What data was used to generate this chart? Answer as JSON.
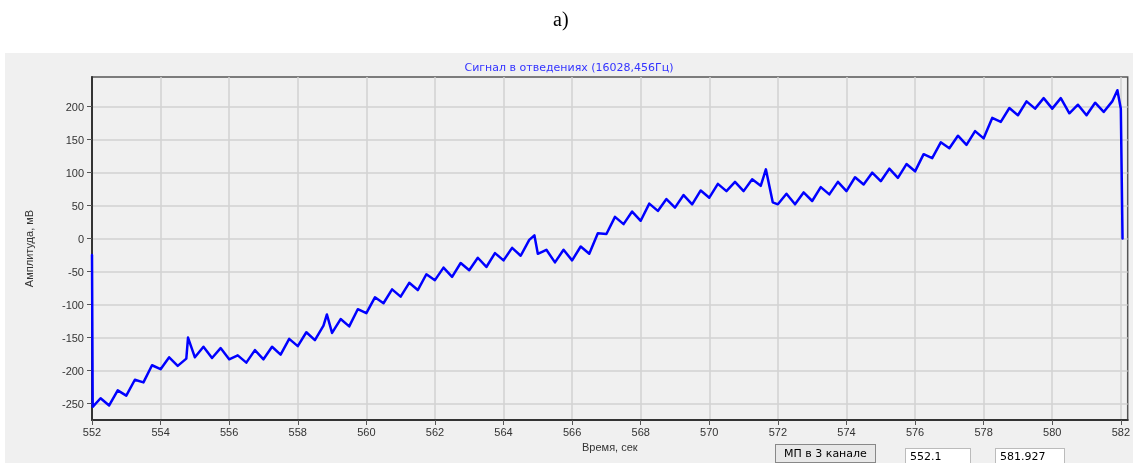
{
  "chart_data": {
    "type": "line",
    "title": "Сигнал в отведениях (16028,456Гц)",
    "xlabel": "Время, сек",
    "ylabel": "Амплитуда, мВ",
    "annotations": [
      "a)",
      "МП в 3 канале",
      "552.1",
      "581.927"
    ],
    "xlim": [
      552,
      582.2
    ],
    "xticks": [
      552,
      554,
      556,
      558,
      560,
      562,
      564,
      566,
      568,
      570,
      572,
      574,
      576,
      578,
      580,
      582
    ],
    "ylim": [
      -275,
      245
    ],
    "yticks": [
      -250,
      -200,
      -150,
      -100,
      -50,
      0,
      50,
      100,
      150,
      200
    ],
    "grid": true,
    "marker": "none",
    "line_style": "solid",
    "series": [
      {
        "color": "#0000ff",
        "x": [
          552,
          552.02,
          552.25,
          552.5,
          552.75,
          553,
          553.25,
          553.5,
          553.75,
          554,
          554.25,
          554.5,
          554.75,
          554.8,
          555,
          555.25,
          555.5,
          555.75,
          556,
          556.25,
          556.5,
          556.75,
          557,
          557.25,
          557.5,
          557.75,
          558,
          558.25,
          558.5,
          558.75,
          558.85,
          559,
          559.25,
          559.5,
          559.75,
          560,
          560.25,
          560.5,
          560.75,
          561,
          561.25,
          561.5,
          561.75,
          562,
          562.25,
          562.5,
          562.75,
          563,
          563.25,
          563.5,
          563.75,
          564,
          564.25,
          564.5,
          564.75,
          564.9,
          565,
          565.25,
          565.5,
          565.75,
          566,
          566.25,
          566.5,
          566.75,
          567,
          567.25,
          567.5,
          567.75,
          568,
          568.25,
          568.5,
          568.75,
          569,
          569.25,
          569.5,
          569.75,
          570,
          570.25,
          570.5,
          570.75,
          571,
          571.25,
          571.5,
          571.65,
          571.75,
          571.85,
          572,
          572.25,
          572.5,
          572.75,
          573,
          573.25,
          573.5,
          573.75,
          574,
          574.25,
          574.5,
          574.75,
          575,
          575.25,
          575.5,
          575.75,
          576,
          576.25,
          576.5,
          576.75,
          577,
          577.25,
          577.5,
          577.75,
          578,
          578.25,
          578.5,
          578.75,
          579,
          579.25,
          579.5,
          579.75,
          580,
          580.25,
          580.5,
          580.75,
          581,
          581.25,
          581.5,
          581.75,
          581.9,
          582,
          582.05
        ],
        "values": [
          -25,
          -255,
          -242,
          -253,
          -230,
          -238,
          -214,
          -218,
          -192,
          -198,
          -180,
          -193,
          -182,
          -150,
          -180,
          -164,
          -181,
          -166,
          -183,
          -177,
          -188,
          -169,
          -183,
          -164,
          -176,
          -152,
          -163,
          -142,
          -154,
          -132,
          -115,
          -143,
          -122,
          -133,
          -107,
          -113,
          -89,
          -98,
          -77,
          -88,
          -67,
          -78,
          -54,
          -63,
          -44,
          -58,
          -37,
          -48,
          -29,
          -43,
          -22,
          -33,
          -14,
          -26,
          -2,
          5,
          -23,
          -17,
          -36,
          -17,
          -33,
          -12,
          -23,
          8,
          7,
          33,
          22,
          41,
          27,
          53,
          42,
          60,
          47,
          66,
          52,
          73,
          62,
          83,
          72,
          86,
          72,
          90,
          80,
          105,
          80,
          55,
          52,
          68,
          52,
          70,
          57,
          78,
          67,
          86,
          72,
          93,
          82,
          100,
          87,
          106,
          92,
          113,
          102,
          128,
          122,
          146,
          137,
          156,
          142,
          163,
          152,
          183,
          177,
          198,
          187,
          208,
          197,
          213,
          197,
          213,
          190,
          203,
          187,
          206,
          192,
          208,
          225,
          197,
          0
        ]
      }
    ]
  }
}
